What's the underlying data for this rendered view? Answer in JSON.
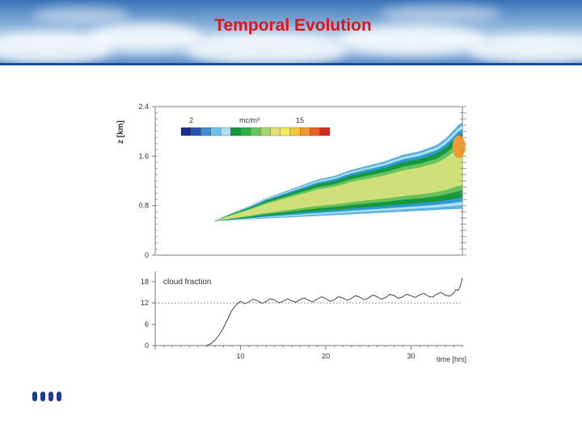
{
  "slide": {
    "title": "Temporal Evolution"
  },
  "decorations": {
    "bullet_count": 4,
    "banner_icon": "sky-clouds-banner"
  },
  "chart_data": [
    {
      "type": "heatmap",
      "title": "",
      "ylabel": "z [km]",
      "ylim": [
        0,
        2.4
      ],
      "y_ticks": [
        "0",
        "0.8",
        "1.6",
        "2.4"
      ],
      "xlim": [
        0,
        36
      ],
      "colorbar": {
        "unit": "mc/m³",
        "min_label": "2",
        "max_label": "15",
        "colors": [
          "#1b2f8f",
          "#2457b5",
          "#3d8fd3",
          "#6fc3e6",
          "#aee0ec",
          "#17983f",
          "#2fb047",
          "#66c25a",
          "#a6d36a",
          "#dfe06e",
          "#f7ec53",
          "#f7c53c",
          "#f19a32",
          "#e8602a",
          "#d42a23"
        ]
      },
      "cloud_base": {
        "x": [
          7,
          36
        ],
        "z": [
          0.55,
          0.75
        ]
      },
      "cloud_top": {
        "x": [
          7,
          9,
          11,
          13,
          15,
          17,
          19,
          21,
          23,
          25,
          27,
          29,
          31,
          33,
          34,
          35,
          35.5,
          36
        ],
        "z": [
          0.56,
          0.68,
          0.79,
          0.92,
          1.02,
          1.12,
          1.22,
          1.28,
          1.38,
          1.45,
          1.52,
          1.62,
          1.68,
          1.78,
          1.88,
          2.02,
          2.1,
          2.15
        ]
      }
    },
    {
      "type": "line",
      "title": "cloud fraction",
      "xlabel": "time [hrs]",
      "x_ticks": [
        "10",
        "20",
        "30"
      ],
      "y_ticks": [
        "0",
        "6",
        "12",
        "18"
      ],
      "xlim": [
        0,
        36
      ],
      "ylim": [
        0,
        20
      ],
      "reference_line": 12,
      "series": [
        {
          "x": [
            6,
            6.5,
            7,
            7.5,
            8,
            8.5,
            9,
            9.5,
            10,
            11,
            12,
            13,
            14,
            15,
            16,
            17,
            18,
            19,
            20,
            21,
            22,
            23,
            24,
            25,
            26,
            27,
            28,
            29,
            30,
            31,
            32,
            33,
            34,
            35,
            35.5,
            36
          ],
          "y": [
            0,
            0.5,
            1.5,
            3,
            5,
            7.5,
            10,
            11.5,
            12.5,
            12.3,
            12.6,
            12.4,
            12.8,
            12.5,
            12.6,
            13.0,
            12.7,
            13.1,
            13.2,
            12.9,
            13.4,
            13.3,
            13.6,
            13.4,
            13.8,
            13.5,
            14.1,
            13.7,
            14.0,
            14.3,
            13.9,
            14.5,
            14.2,
            14.8,
            15.5,
            19
          ]
        }
      ]
    }
  ]
}
